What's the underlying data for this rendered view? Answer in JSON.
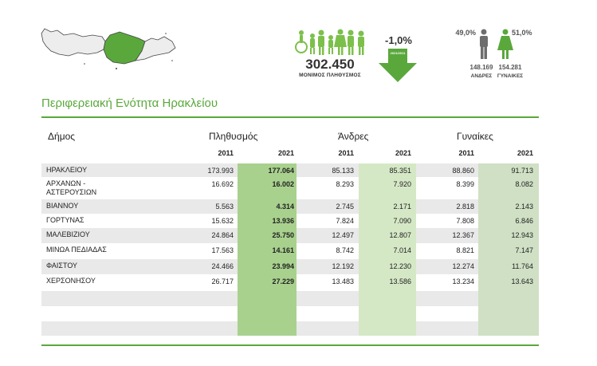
{
  "summary": {
    "population_total": "302.450",
    "population_label": "ΜΟΝΙΜΟΣ ΠΛΗΘΥΣΜΟΣ",
    "change_pct": "-1,0%",
    "change_period": "2021/2011",
    "male_pct": "49,0%",
    "female_pct": "51,0%",
    "male_count": "148.169",
    "female_count": "154.281",
    "male_label": "ΑΝΔΡΕΣ",
    "female_label": "ΓΥΝΑΙΚΕΣ"
  },
  "title": "Περιφερειακή Ενότητα Ηρακλείου",
  "table": {
    "headers": {
      "municipality": "Δήμος",
      "population": "Πληθυσμός",
      "men": "Άνδρες",
      "women": "Γυναίκες"
    },
    "years": [
      "2011",
      "2021",
      "2011",
      "2021",
      "2011",
      "2021"
    ],
    "rows": [
      {
        "name": "ΗΡΑΚΛΕΙΟΥ",
        "name2": "",
        "pop2011": "173.993",
        "pop2021": "177.064",
        "men2011": "85.133",
        "men2021": "85.351",
        "women2011": "88.860",
        "women2021": "91.713"
      },
      {
        "name": "ΑΡΧΑΝΩΝ -",
        "name2": "ΑΣΤΕΡΟΥΣΙΩΝ",
        "pop2011": "16.692",
        "pop2021": "16.002",
        "men2011": "8.293",
        "men2021": "7.920",
        "women2011": "8.399",
        "women2021": "8.082"
      },
      {
        "name": "ΒΙΑΝΝΟΥ",
        "name2": "",
        "pop2011": "5.563",
        "pop2021": "4.314",
        "men2011": "2.745",
        "men2021": "2.171",
        "women2011": "2.818",
        "women2021": "2.143"
      },
      {
        "name": "ΓΟΡΤΥΝΑΣ",
        "name2": "",
        "pop2011": "15.632",
        "pop2021": "13.936",
        "men2011": "7.824",
        "men2021": "7.090",
        "women2011": "7.808",
        "women2021": "6.846"
      },
      {
        "name": "ΜΑΛΕΒΙΖΙΟΥ",
        "name2": "",
        "pop2011": "24.864",
        "pop2021": "25.750",
        "men2011": "12.497",
        "men2021": "12.807",
        "women2011": "12.367",
        "women2021": "12.943"
      },
      {
        "name": "ΜΙΝΩΑ ΠΕΔΙΑΔΑΣ",
        "name2": "",
        "pop2011": "17.563",
        "pop2021": "14.161",
        "men2011": "8.742",
        "men2021": "7.014",
        "women2011": "8.821",
        "women2021": "7.147"
      },
      {
        "name": "ΦΑΙΣΤΟΥ",
        "name2": "",
        "pop2011": "24.466",
        "pop2021": "23.994",
        "men2011": "12.192",
        "men2021": "12.230",
        "women2011": "12.274",
        "women2021": "11.764"
      },
      {
        "name": "ΧΕΡΣΟΝΗΣΟΥ",
        "name2": "",
        "pop2011": "26.717",
        "pop2021": "27.229",
        "men2011": "13.483",
        "men2021": "13.586",
        "women2011": "13.234",
        "women2021": "13.643"
      }
    ]
  },
  "colors": {
    "accent_green": "#5aa83c",
    "pop2021_col": "#a9d18e",
    "men2021_col": "#d5e8c6",
    "women2021_col": "#cfe0c4",
    "row_band": "#e9e9e9"
  }
}
